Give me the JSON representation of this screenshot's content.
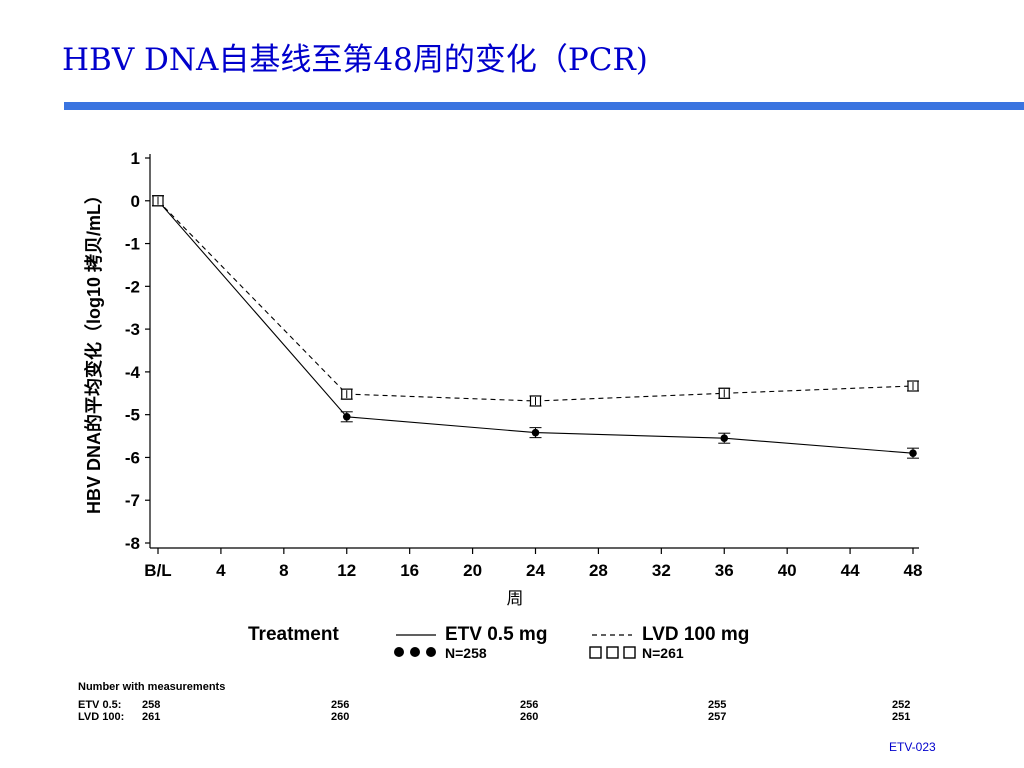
{
  "slide": {
    "title": "HBV DNA自基线至第48周的变化（PCR)",
    "footer_code": "ETV-023",
    "accent_color": "#3a74e0",
    "title_color": "#0000cc"
  },
  "chart_data": {
    "type": "line",
    "title": "",
    "xlabel": "周",
    "ylabel": "HBV DNA的平均变化（log10 拷贝/mL）",
    "x_tick_labels": [
      "B/L",
      "4",
      "8",
      "12",
      "16",
      "20",
      "24",
      "28",
      "32",
      "36",
      "40",
      "44",
      "48"
    ],
    "x_tick_values": [
      0,
      4,
      8,
      12,
      16,
      20,
      24,
      28,
      32,
      36,
      40,
      44,
      48
    ],
    "y_tick_labels": [
      "1",
      "0",
      "-1",
      "-2",
      "-3",
      "-4",
      "-5",
      "-6",
      "-7",
      "-8"
    ],
    "y_tick_values": [
      1,
      0,
      -1,
      -2,
      -3,
      -4,
      -5,
      -6,
      -7,
      -8
    ],
    "xlim": [
      0,
      48
    ],
    "ylim": [
      -8,
      1
    ],
    "grid": false,
    "series": [
      {
        "name": "ETV 0.5 mg",
        "marker": "filled-circle",
        "line_style": "solid",
        "n_label": "N=258",
        "x": [
          0,
          12,
          24,
          36,
          48
        ],
        "values": [
          0.0,
          -5.05,
          -5.42,
          -5.55,
          -5.9
        ]
      },
      {
        "name": "LVD 100 mg",
        "marker": "open-square",
        "line_style": "dashed",
        "n_label": "N=261",
        "x": [
          0,
          12,
          24,
          36,
          48
        ],
        "values": [
          0.0,
          -4.52,
          -4.68,
          -4.5,
          -4.33
        ]
      }
    ],
    "legend": {
      "title": "Treatment",
      "placement": "bottom"
    }
  },
  "measurements": {
    "header": "Number with measurements",
    "rows": [
      {
        "label": "ETV 0.5:",
        "values": [
          "258",
          "256",
          "256",
          "255",
          "252"
        ]
      },
      {
        "label": "LVD 100:",
        "values": [
          "261",
          "260",
          "260",
          "257",
          "251"
        ]
      }
    ]
  }
}
